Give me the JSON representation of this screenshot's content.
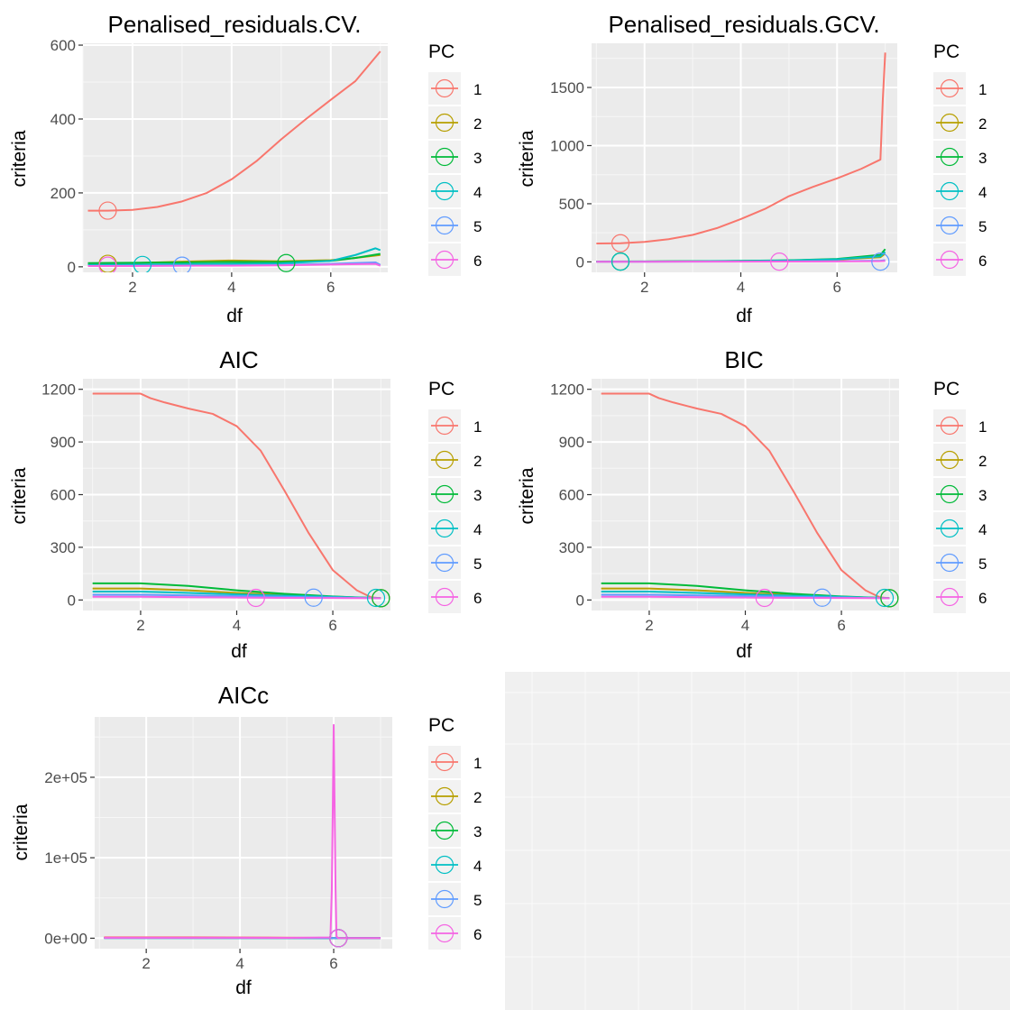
{
  "colors": {
    "1": "#F8766D",
    "2": "#B79F00",
    "3": "#00BA38",
    "4": "#00BFC4",
    "5": "#619CFF",
    "6": "#F564E3"
  },
  "chart_data": [
    {
      "type": "line",
      "title": "Penalised_residuals.CV.",
      "xlabel": "df",
      "ylabel": "criteria",
      "xlim": [
        1.0,
        7.15
      ],
      "ylim": [
        -15,
        605
      ],
      "xticks": [
        2,
        4,
        6
      ],
      "xtick_labels": [
        "2",
        "4",
        "6"
      ],
      "yticks": [
        0,
        200,
        400,
        600
      ],
      "ytick_labels": [
        "0",
        "200",
        "400",
        "600"
      ],
      "legend": {
        "title": "PC",
        "labels": [
          "1",
          "2",
          "3",
          "4",
          "5",
          "6"
        ],
        "position": "right"
      },
      "series": [
        {
          "name": "1",
          "x": [
            1.1,
            1.5,
            2.0,
            2.5,
            3.0,
            3.5,
            4.0,
            4.5,
            5.0,
            5.5,
            6.0,
            6.5,
            7.0
          ],
          "y": [
            152,
            152,
            154,
            162,
            177,
            200,
            237,
            286,
            345,
            400,
            452,
            503,
            583
          ]
        },
        {
          "name": "2",
          "x": [
            1.1,
            2.0,
            3.0,
            4.0,
            5.0,
            6.0,
            6.5,
            7.0
          ],
          "y": [
            8,
            10,
            14,
            17,
            15,
            18,
            24,
            32
          ]
        },
        {
          "name": "3",
          "x": [
            1.1,
            2.0,
            3.0,
            4.0,
            5.0,
            6.0,
            6.5,
            7.0
          ],
          "y": [
            10,
            11,
            12,
            13,
            13,
            16,
            24,
            35
          ]
        },
        {
          "name": "4",
          "x": [
            1.1,
            2.0,
            3.0,
            4.0,
            5.0,
            6.0,
            6.5,
            6.9,
            7.0
          ],
          "y": [
            5,
            6,
            7,
            8,
            9,
            16,
            32,
            50,
            45
          ]
        },
        {
          "name": "5",
          "x": [
            1.1,
            2.0,
            3.0,
            4.0,
            5.0,
            6.0,
            6.9,
            7.0
          ],
          "y": [
            2,
            3,
            3,
            4,
            5,
            8,
            12,
            5
          ]
        },
        {
          "name": "6",
          "x": [
            1.1,
            2.0,
            3.0,
            4.0,
            5.0,
            6.0,
            6.9,
            7.0
          ],
          "y": [
            2,
            2,
            3,
            3,
            4,
            6,
            8,
            3
          ]
        }
      ],
      "markers": [
        {
          "series": "1",
          "x": 1.5,
          "y": 152
        },
        {
          "series": "2",
          "x": 1.5,
          "y": 8
        },
        {
          "series": "3",
          "x": 5.1,
          "y": 10
        },
        {
          "series": "4",
          "x": 2.2,
          "y": 5
        },
        {
          "series": "5",
          "x": 3.0,
          "y": 3
        },
        {
          "series": "6",
          "x": 1.5,
          "y": 3
        }
      ]
    },
    {
      "type": "line",
      "title": "Penalised_residuals.GCV.",
      "xlabel": "df",
      "ylabel": "criteria",
      "xlim": [
        0.9,
        7.25
      ],
      "ylim": [
        -90,
        1880
      ],
      "xticks": [
        2,
        4,
        6
      ],
      "xtick_labels": [
        "2",
        "4",
        "6"
      ],
      "yticks": [
        0,
        500,
        1000,
        1500
      ],
      "ytick_labels": [
        "0",
        "500",
        "1000",
        "1500"
      ],
      "legend": {
        "title": "PC",
        "labels": [
          "1",
          "2",
          "3",
          "4",
          "5",
          "6"
        ],
        "position": "right"
      },
      "series": [
        {
          "name": "1",
          "x": [
            1.0,
            1.5,
            2.0,
            2.5,
            3.0,
            3.5,
            4.0,
            4.5,
            5.0,
            5.5,
            6.0,
            6.5,
            6.9,
            6.95,
            7.0
          ],
          "y": [
            158,
            160,
            172,
            195,
            232,
            290,
            368,
            455,
            565,
            645,
            718,
            800,
            880,
            1400,
            1800
          ]
        },
        {
          "name": "2",
          "x": [
            1.0,
            2.0,
            3.0,
            4.0,
            5.0,
            6.0,
            6.9,
            7.0
          ],
          "y": [
            2,
            3,
            5,
            8,
            12,
            20,
            40,
            70
          ]
        },
        {
          "name": "3",
          "x": [
            1.0,
            2.0,
            3.0,
            4.0,
            5.0,
            6.0,
            6.9,
            7.0
          ],
          "y": [
            3,
            4,
            6,
            9,
            14,
            25,
            60,
            110
          ]
        },
        {
          "name": "4",
          "x": [
            1.0,
            2.0,
            3.0,
            4.0,
            5.0,
            6.0,
            6.9,
            7.0
          ],
          "y": [
            2,
            3,
            5,
            8,
            12,
            22,
            48,
            85
          ]
        },
        {
          "name": "5",
          "x": [
            1.0,
            2.0,
            3.0,
            4.0,
            5.0,
            6.0,
            6.9,
            7.0
          ],
          "y": [
            1,
            1,
            2,
            3,
            4,
            6,
            10,
            15
          ]
        },
        {
          "name": "6",
          "x": [
            1.0,
            2.0,
            3.0,
            4.0,
            5.0,
            6.0,
            6.9,
            7.0
          ],
          "y": [
            1,
            1,
            2,
            2,
            3,
            4,
            6,
            8
          ]
        }
      ],
      "markers": [
        {
          "series": "1",
          "x": 1.5,
          "y": 160
        },
        {
          "series": "2",
          "x": 1.5,
          "y": 2
        },
        {
          "series": "3",
          "x": 1.5,
          "y": 3
        },
        {
          "series": "4",
          "x": 1.5,
          "y": 2
        },
        {
          "series": "5",
          "x": 6.9,
          "y": 2
        },
        {
          "series": "6",
          "x": 4.8,
          "y": 2
        }
      ]
    },
    {
      "type": "line",
      "title": "AIC",
      "xlabel": "df",
      "ylabel": "criteria",
      "xlim": [
        0.8,
        7.2
      ],
      "ylim": [
        -60,
        1260
      ],
      "xticks": [
        2,
        4,
        6
      ],
      "xtick_labels": [
        "2",
        "4",
        "6"
      ],
      "yticks": [
        0,
        300,
        600,
        900,
        1200
      ],
      "ytick_labels": [
        "0",
        "300",
        "600",
        "900",
        "1200"
      ],
      "legend": {
        "title": "PC",
        "labels": [
          "1",
          "2",
          "3",
          "4",
          "5",
          "6"
        ],
        "position": "right"
      },
      "series": [
        {
          "name": "1",
          "x": [
            1.0,
            1.5,
            2.0,
            2.2,
            2.5,
            3.0,
            3.5,
            4.0,
            4.5,
            5.0,
            5.5,
            6.0,
            6.5,
            6.8,
            7.0
          ],
          "y": [
            1175,
            1175,
            1175,
            1150,
            1125,
            1090,
            1060,
            990,
            850,
            620,
            380,
            170,
            55,
            15,
            10
          ]
        },
        {
          "name": "2",
          "x": [
            1.0,
            2.0,
            3.0,
            4.0,
            5.0,
            6.0,
            7.0
          ],
          "y": [
            65,
            65,
            55,
            40,
            28,
            18,
            10
          ]
        },
        {
          "name": "3",
          "x": [
            1.0,
            2.0,
            3.0,
            4.0,
            5.0,
            6.0,
            7.0
          ],
          "y": [
            95,
            95,
            80,
            55,
            35,
            20,
            10
          ]
        },
        {
          "name": "4",
          "x": [
            1.0,
            2.0,
            3.0,
            4.0,
            5.0,
            6.0,
            7.0
          ],
          "y": [
            48,
            48,
            40,
            32,
            25,
            18,
            10
          ]
        },
        {
          "name": "5",
          "x": [
            1.0,
            2.0,
            3.0,
            4.0,
            5.0,
            6.0,
            7.0
          ],
          "y": [
            30,
            30,
            26,
            22,
            18,
            14,
            10
          ]
        },
        {
          "name": "6",
          "x": [
            1.0,
            2.0,
            3.0,
            4.0,
            5.0,
            6.0,
            7.0
          ],
          "y": [
            18,
            18,
            16,
            14,
            12,
            11,
            10
          ]
        }
      ],
      "markers": [
        {
          "series": "1",
          "x": 7.0,
          "y": 10
        },
        {
          "series": "2",
          "x": 7.0,
          "y": 10
        },
        {
          "series": "3",
          "x": 7.0,
          "y": 10
        },
        {
          "series": "4",
          "x": 6.9,
          "y": 12
        },
        {
          "series": "5",
          "x": 5.6,
          "y": 13
        },
        {
          "series": "6",
          "x": 4.4,
          "y": 12
        }
      ]
    },
    {
      "type": "line",
      "title": "BIC",
      "xlabel": "df",
      "ylabel": "criteria",
      "xlim": [
        0.8,
        7.2
      ],
      "ylim": [
        -60,
        1260
      ],
      "xticks": [
        2,
        4,
        6
      ],
      "xtick_labels": [
        "2",
        "4",
        "6"
      ],
      "yticks": [
        0,
        300,
        600,
        900,
        1200
      ],
      "ytick_labels": [
        "0",
        "300",
        "600",
        "900",
        "1200"
      ],
      "legend": {
        "title": "PC",
        "labels": [
          "1",
          "2",
          "3",
          "4",
          "5",
          "6"
        ],
        "position": "right"
      },
      "series": [
        {
          "name": "1",
          "x": [
            1.0,
            1.5,
            2.0,
            2.2,
            2.5,
            3.0,
            3.5,
            4.0,
            4.5,
            5.0,
            5.5,
            6.0,
            6.5,
            6.8,
            7.0
          ],
          "y": [
            1175,
            1175,
            1175,
            1150,
            1125,
            1090,
            1060,
            990,
            850,
            620,
            380,
            170,
            55,
            15,
            10
          ]
        },
        {
          "name": "2",
          "x": [
            1.0,
            2.0,
            3.0,
            4.0,
            5.0,
            6.0,
            7.0
          ],
          "y": [
            65,
            65,
            55,
            40,
            28,
            18,
            10
          ]
        },
        {
          "name": "3",
          "x": [
            1.0,
            2.0,
            3.0,
            4.0,
            5.0,
            6.0,
            7.0
          ],
          "y": [
            95,
            95,
            80,
            55,
            35,
            20,
            10
          ]
        },
        {
          "name": "4",
          "x": [
            1.0,
            2.0,
            3.0,
            4.0,
            5.0,
            6.0,
            7.0
          ],
          "y": [
            48,
            48,
            40,
            32,
            25,
            18,
            10
          ]
        },
        {
          "name": "5",
          "x": [
            1.0,
            2.0,
            3.0,
            4.0,
            5.0,
            6.0,
            7.0
          ],
          "y": [
            30,
            30,
            26,
            22,
            18,
            14,
            10
          ]
        },
        {
          "name": "6",
          "x": [
            1.0,
            2.0,
            3.0,
            4.0,
            5.0,
            6.0,
            7.0
          ],
          "y": [
            18,
            18,
            16,
            14,
            12,
            11,
            10
          ]
        }
      ],
      "markers": [
        {
          "series": "1",
          "x": 7.0,
          "y": 10
        },
        {
          "series": "2",
          "x": 7.0,
          "y": 10
        },
        {
          "series": "3",
          "x": 7.0,
          "y": 10
        },
        {
          "series": "4",
          "x": 6.9,
          "y": 12
        },
        {
          "series": "5",
          "x": 5.6,
          "y": 13
        },
        {
          "series": "6",
          "x": 4.4,
          "y": 12
        }
      ]
    },
    {
      "type": "line",
      "title": "AICc",
      "xlabel": "df",
      "ylabel": "criteria",
      "xlim": [
        0.9,
        7.25
      ],
      "ylim": [
        -13000,
        275000
      ],
      "xticks": [
        2,
        4,
        6
      ],
      "xtick_labels": [
        "2",
        "4",
        "6"
      ],
      "yticks": [
        0,
        100000,
        200000
      ],
      "ytick_labels": [
        "0e+00",
        "1e+05",
        "2e+05"
      ],
      "legend": {
        "title": "PC",
        "labels": [
          "1",
          "2",
          "3",
          "4",
          "5",
          "6"
        ],
        "position": "right"
      },
      "series": [
        {
          "name": "1",
          "x": [
            1.1,
            3.0,
            4.6,
            5.96,
            7.0
          ],
          "y": [
            1200,
            1100,
            900,
            300,
            100
          ]
        },
        {
          "name": "2",
          "x": [
            1.1,
            4.6,
            5.96,
            7.0
          ],
          "y": [
            300,
            250,
            200,
            100
          ]
        },
        {
          "name": "3",
          "x": [
            1.1,
            4.6,
            5.96,
            7.0
          ],
          "y": [
            400,
            300,
            200,
            100
          ]
        },
        {
          "name": "4",
          "x": [
            1.1,
            4.6,
            5.96,
            7.0
          ],
          "y": [
            300,
            250,
            200,
            100
          ]
        },
        {
          "name": "5",
          "x": [
            1.1,
            4.6,
            5.96,
            7.0
          ],
          "y": [
            200,
            150,
            100,
            100
          ]
        },
        {
          "name": "6",
          "x": [
            1.1,
            3.0,
            5.0,
            5.93,
            5.96,
            5.98,
            6.0,
            6.02,
            6.04,
            6.06,
            6.1,
            7.0
          ],
          "y": [
            600,
            600,
            500,
            1000,
            60000,
            160000,
            265000,
            160000,
            60000,
            2000,
            100,
            100
          ]
        }
      ],
      "markers": [
        {
          "series": "1",
          "x": 6.1,
          "y": 0
        },
        {
          "series": "2",
          "x": 6.1,
          "y": 0
        },
        {
          "series": "3",
          "x": 6.1,
          "y": 0
        },
        {
          "series": "4",
          "x": 6.1,
          "y": 0
        },
        {
          "series": "5",
          "x": 6.1,
          "y": 0
        },
        {
          "series": "6",
          "x": 6.1,
          "y": 0
        }
      ]
    }
  ]
}
